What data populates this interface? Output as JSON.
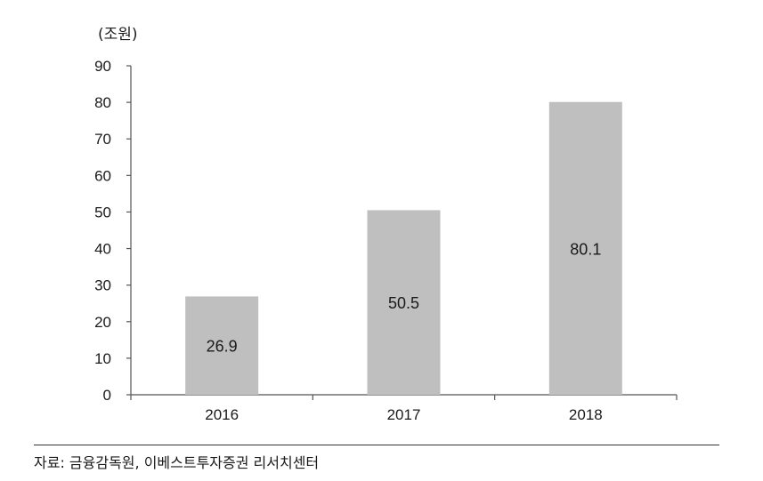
{
  "chart_data": {
    "type": "bar",
    "categories": [
      "2016",
      "2017",
      "2018"
    ],
    "values": [
      26.9,
      50.5,
      80.1
    ],
    "data_labels": [
      "26.9",
      "50.5",
      "80.1"
    ],
    "ylabel": "(조원)",
    "ylim": [
      0,
      90
    ],
    "yticks": [
      "0",
      "10",
      "20",
      "30",
      "40",
      "50",
      "60",
      "70",
      "80",
      "90"
    ],
    "grid": false,
    "bar_color": "#bfbfbf"
  },
  "source": "자료: 금융감독원, 이베스트투자증권 리서치센터"
}
